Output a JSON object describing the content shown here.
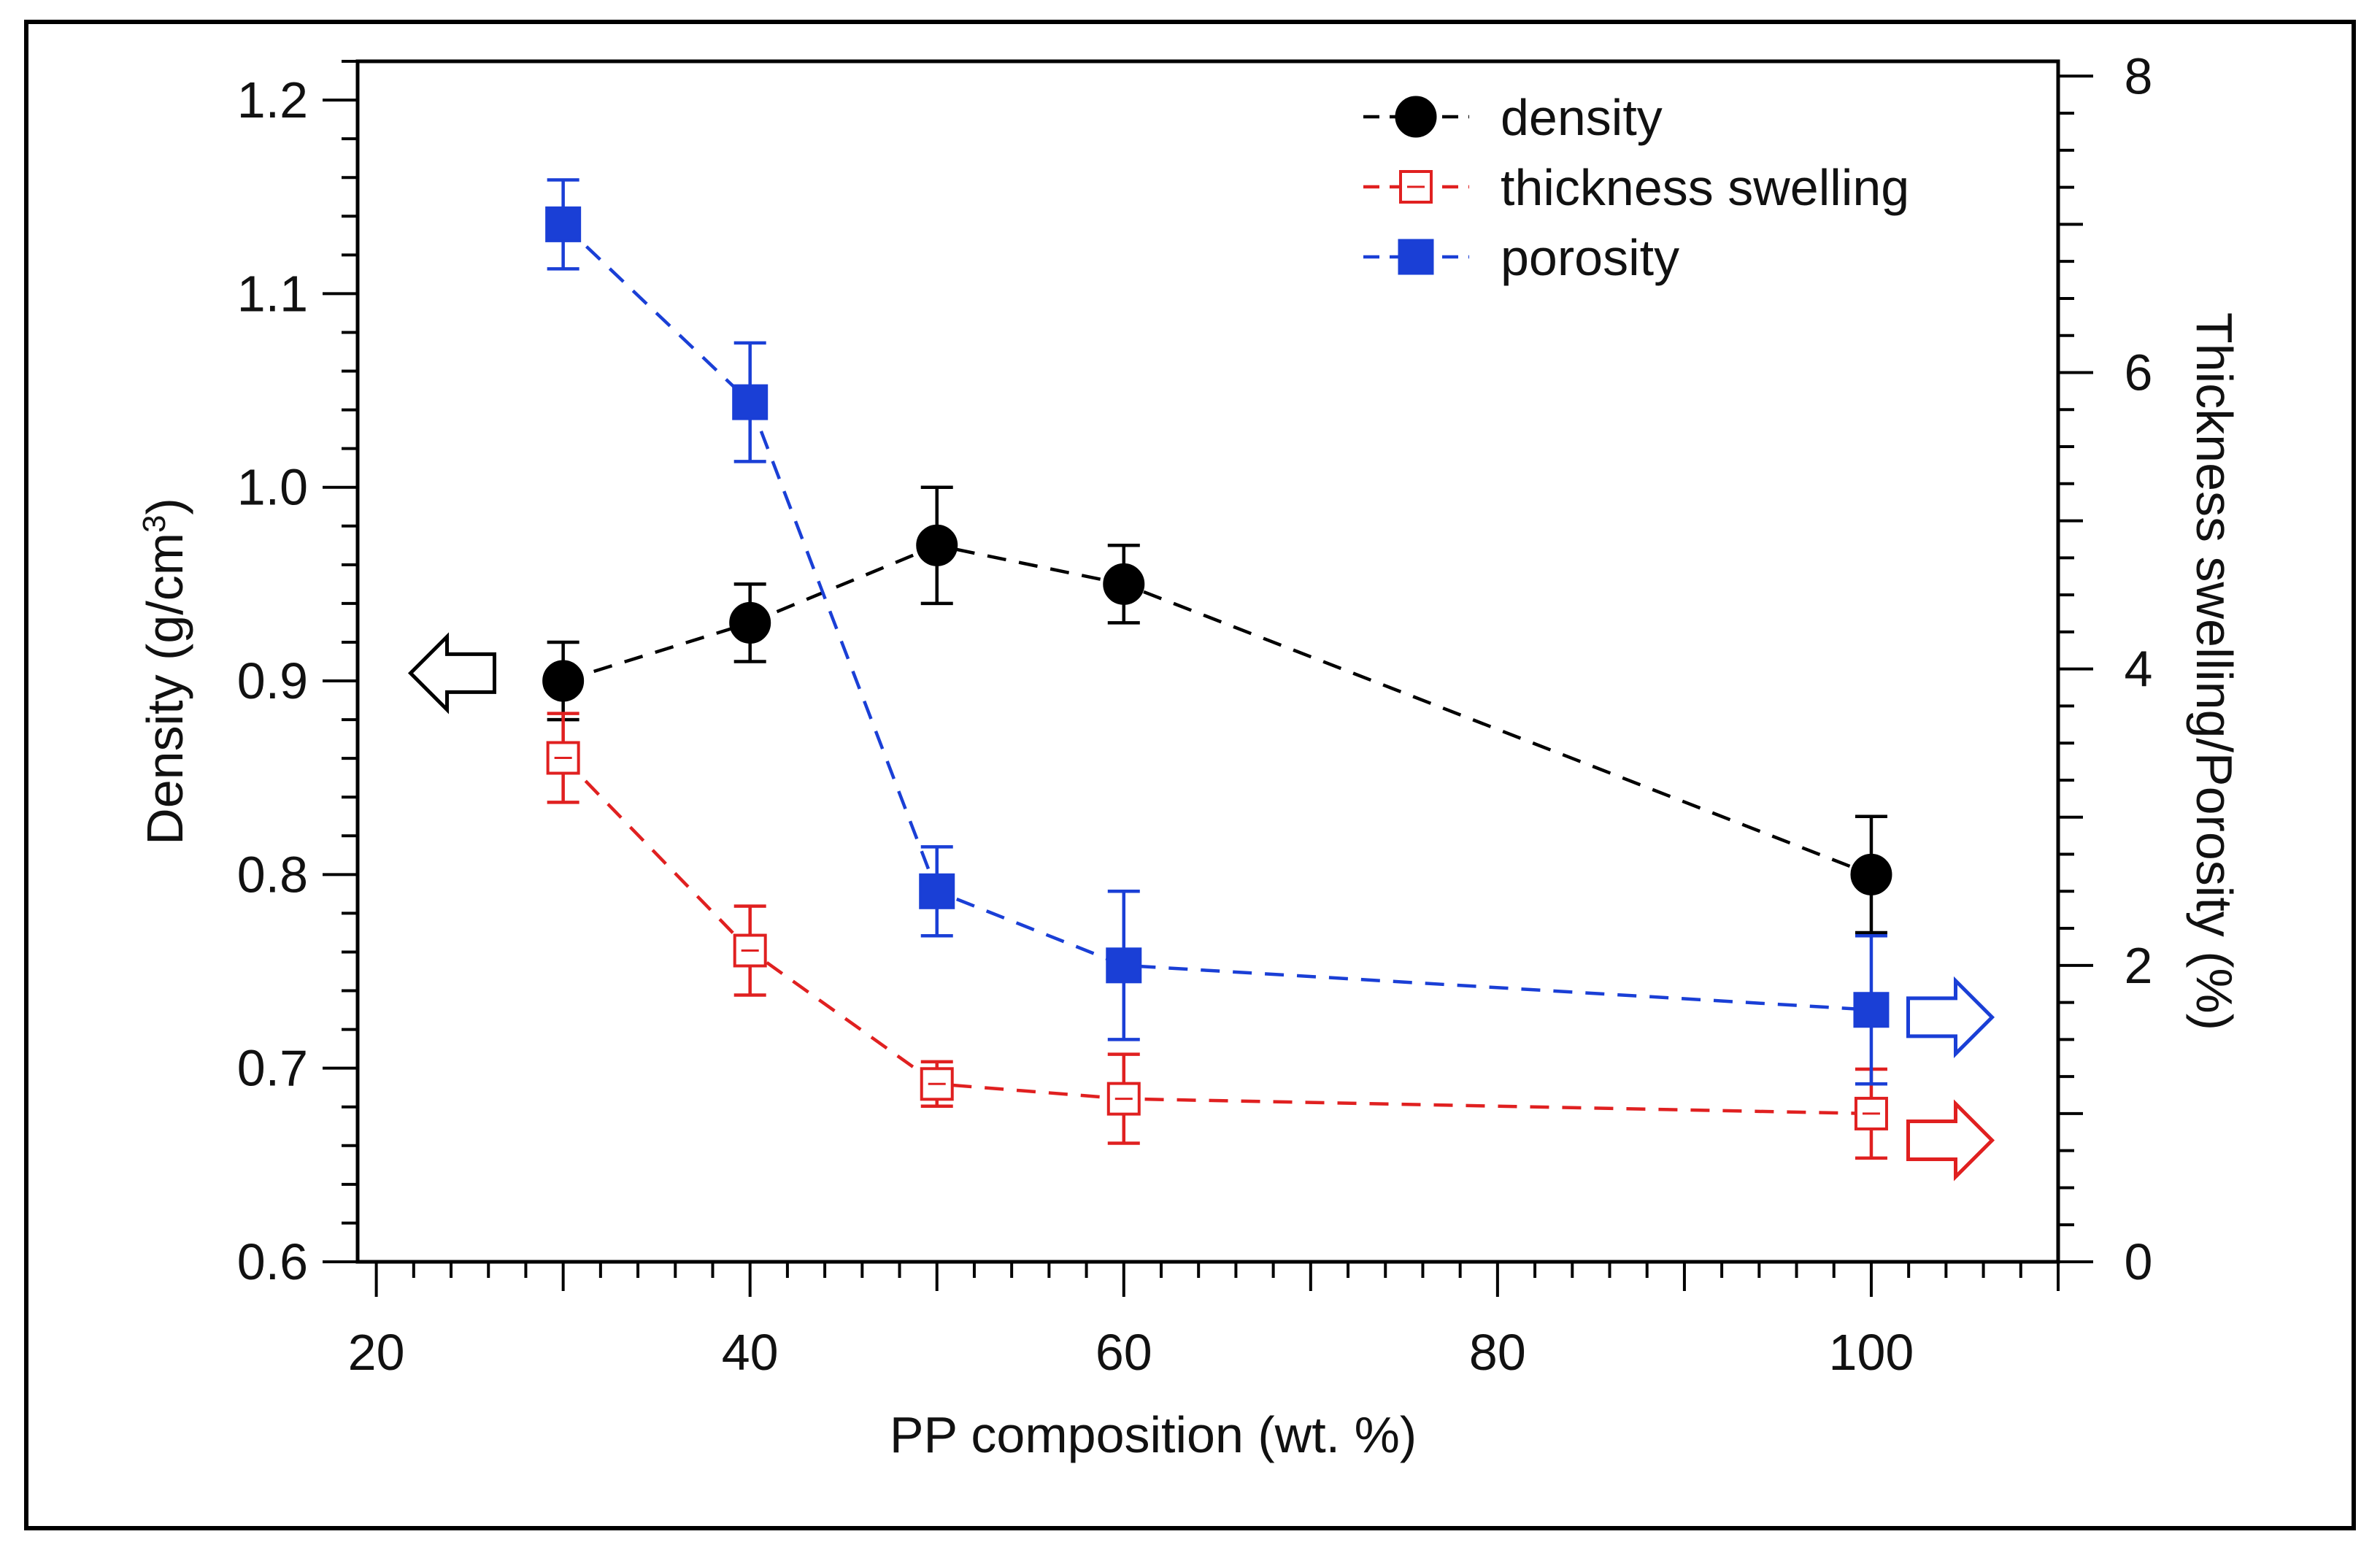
{
  "chart_data": {
    "type": "line",
    "x_positions": [
      30,
      40,
      50,
      60,
      100
    ],
    "xaxis": {
      "label": "PP composition (wt. %)",
      "range": [
        19,
        110
      ],
      "ticks": [
        20,
        40,
        60,
        80,
        100
      ],
      "tick_labels": [
        "20",
        "40",
        "60",
        "80",
        "100"
      ],
      "minor_step": 2
    },
    "yaxis_left": {
      "label_main": "Density (g/cm",
      "label_sup": "3",
      "label_close": ")",
      "range": [
        0.6,
        1.22
      ],
      "ticks": [
        0.6,
        0.7,
        0.8,
        0.9,
        1.0,
        1.1,
        1.2
      ],
      "tick_labels": [
        "0.6",
        "0.7",
        "0.8",
        "0.9",
        "1.0",
        "1.1",
        "1.2"
      ],
      "minor_step": 0.02
    },
    "yaxis_right": {
      "label": "Thickness swelling/Porosity (%)",
      "range": [
        0,
        8.1
      ],
      "ticks": [
        0,
        2,
        4,
        6,
        8
      ],
      "tick_labels": [
        "0",
        "2",
        "4",
        "6",
        "8"
      ],
      "minor_step": 0.25
    },
    "series": [
      {
        "name": "density",
        "axis": "left",
        "color": "#000000",
        "marker": "filled-circle",
        "values": [
          0.9,
          0.93,
          0.97,
          0.95,
          0.8
        ],
        "errors": [
          0.02,
          0.02,
          0.03,
          0.02,
          0.03
        ]
      },
      {
        "name": "thickness swelling",
        "axis": "right",
        "color": "#e02020",
        "marker": "open-square",
        "values": [
          3.4,
          2.1,
          1.2,
          1.1,
          1.0
        ],
        "errors": [
          0.3,
          0.3,
          0.15,
          0.3,
          0.3
        ]
      },
      {
        "name": "porosity",
        "axis": "right",
        "color": "#1a3fd6",
        "marker": "filled-square",
        "values": [
          7.0,
          5.8,
          2.5,
          2.0,
          1.7
        ],
        "errors": [
          0.3,
          0.4,
          0.3,
          0.5,
          0.5
        ]
      }
    ],
    "legend_position": "top-right",
    "annotations": [
      {
        "name": "left-axis-arrow",
        "points": "left",
        "color": "#000000"
      },
      {
        "name": "right-axis-arrow-porosity",
        "points": "right",
        "color": "#1a3fd6"
      },
      {
        "name": "right-axis-arrow-swelling",
        "points": "right",
        "color": "#e02020"
      }
    ]
  }
}
